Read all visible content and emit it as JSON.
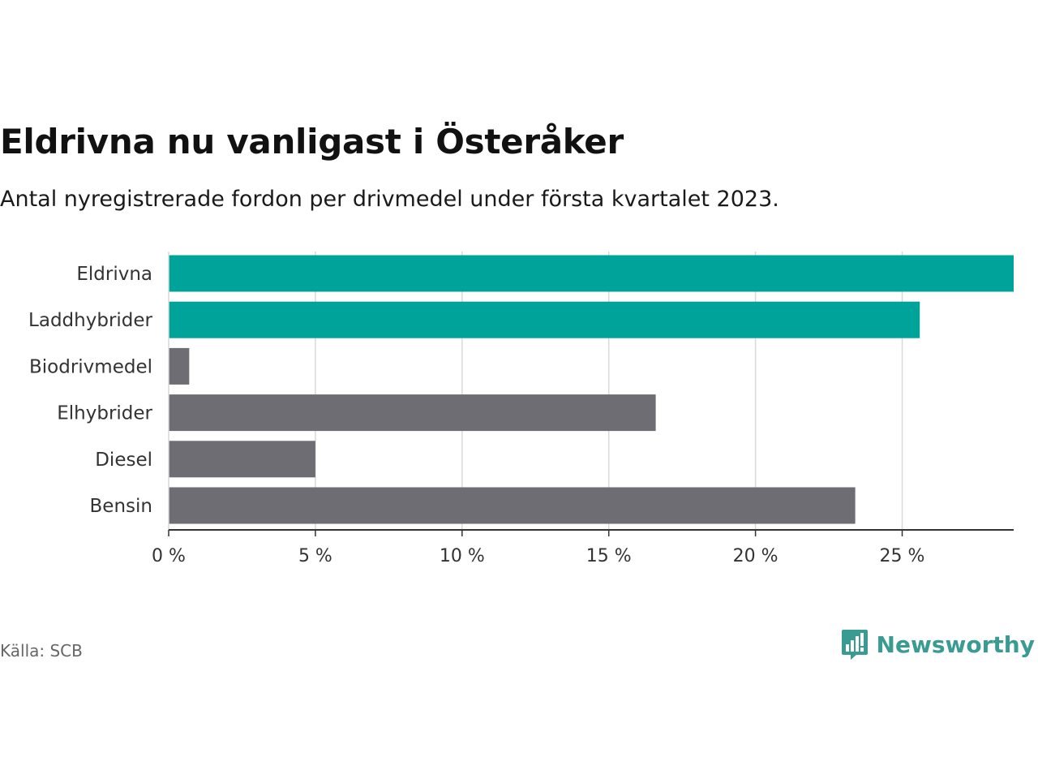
{
  "title": "Eldrivna nu vanligast i Österåker",
  "subtitle": "Antal nyregistrerade fordon per drivmedel under första kvartalet 2023.",
  "source": "Källa: SCB",
  "brand": {
    "name": "Newsworthy",
    "color": "#3a9b92"
  },
  "colors": {
    "highlight": "#00a39a",
    "other": "#6e6d73",
    "grid": "#d9d9d9",
    "axis": "#333333"
  },
  "chart_data": {
    "type": "bar",
    "orientation": "horizontal",
    "categories": [
      "Eldrivna",
      "Laddhybrider",
      "Biodrivmedel",
      "Elhybrider",
      "Diesel",
      "Bensin"
    ],
    "values": [
      28.8,
      25.6,
      0.7,
      16.6,
      5.0,
      23.4
    ],
    "highlight": [
      true,
      true,
      false,
      false,
      false,
      false
    ],
    "unit": "%",
    "xlim": [
      0,
      28.8
    ],
    "xticks": [
      0,
      5,
      10,
      15,
      20,
      25
    ],
    "xtick_labels": [
      "0 %",
      "5 %",
      "10 %",
      "15 %",
      "20 %",
      "25 %"
    ],
    "grid": true,
    "legend": "none"
  }
}
